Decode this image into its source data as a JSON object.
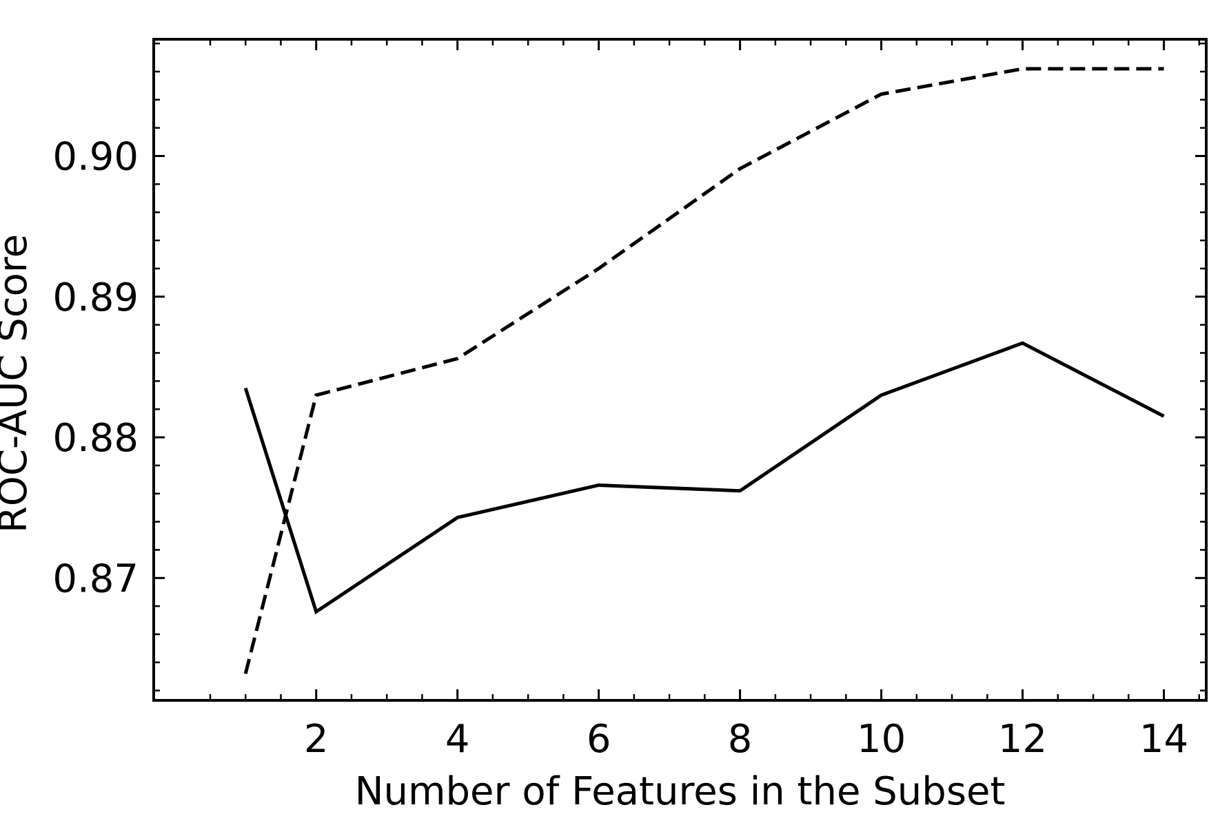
{
  "chart_data": {
    "type": "line",
    "xlabel": "Number of Features in the Subset",
    "ylabel": "ROC-AUC Score",
    "x_ticks": [
      2,
      4,
      6,
      8,
      10,
      12,
      14
    ],
    "x_tick_labels": [
      "2",
      "4",
      "6",
      "8",
      "10",
      "12",
      "14"
    ],
    "y_ticks": [
      0.87,
      0.88,
      0.89,
      0.9
    ],
    "y_tick_labels": [
      "0.87",
      "0.88",
      "0.89",
      "0.90"
    ],
    "xlim": [
      -0.3,
      14.6
    ],
    "ylim": [
      0.8613,
      0.9083
    ],
    "grid": false,
    "legend": "none",
    "series": [
      {
        "style": "solid",
        "color": "#000000",
        "x": [
          1,
          2,
          4,
          6,
          8,
          10,
          12,
          14
        ],
        "y": [
          0.8835,
          0.8676,
          0.8743,
          0.8766,
          0.8762,
          0.883,
          0.8867,
          0.8815
        ]
      },
      {
        "style": "dashed",
        "color": "#000000",
        "x": [
          1,
          2,
          4,
          6,
          8,
          10,
          12,
          14
        ],
        "y": [
          0.8632,
          0.883,
          0.8856,
          0.892,
          0.8991,
          0.9044,
          0.9062,
          0.9062
        ]
      }
    ]
  }
}
